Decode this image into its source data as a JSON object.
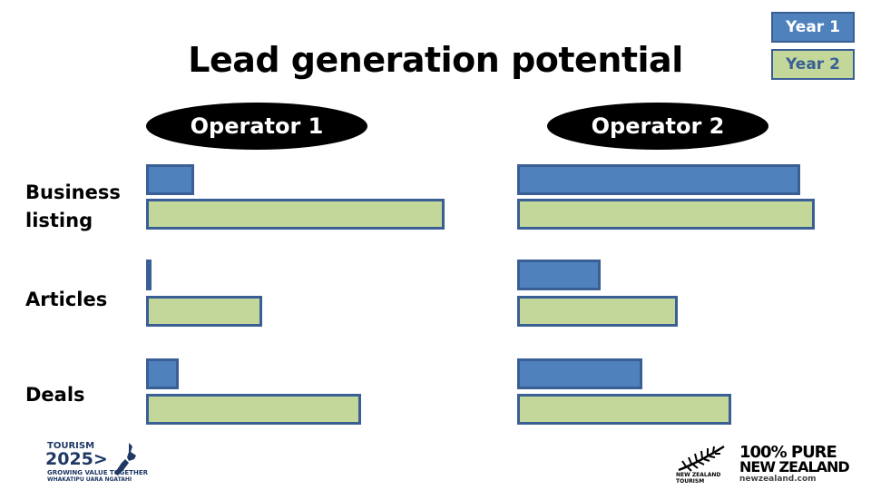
{
  "slide": {
    "title": "Lead generation potential"
  },
  "legend": {
    "year1": "Year 1",
    "year2": "Year 2"
  },
  "colors": {
    "year1": "#4f81bd",
    "year2": "#c4d79b",
    "bar_border": "#3a5f95",
    "pill": "#000000"
  },
  "logos": {
    "left": {
      "line1": "TOURISM",
      "line2": "2025>",
      "line3": "GROWING VALUE TOGETHER",
      "line4": "WHAKATIPU UARA NGATAHI"
    },
    "right": {
      "brand_line1": "100% PURE",
      "brand_line2": "NEW ZEALAND",
      "url": "newzealand.com",
      "caption_line1": "NEW ZEALAND",
      "caption_line2": "TOURISM",
      "icon": "silver-fern-icon"
    }
  },
  "chart_data": [
    {
      "type": "bar",
      "orientation": "horizontal",
      "title": "Operator 1",
      "categories": [
        "Business\nlisting",
        "Articles",
        "Deals"
      ],
      "series": [
        {
          "name": "Year 1",
          "values": [
            16,
            1,
            11
          ]
        },
        {
          "name": "Year 2",
          "values": [
            100,
            39,
            72
          ]
        }
      ],
      "xlim": [
        0,
        100
      ],
      "grid": false,
      "legend": "top-right"
    },
    {
      "type": "bar",
      "orientation": "horizontal",
      "title": "Operator 2",
      "categories": [
        "Business\nlisting",
        "Articles",
        "Deals"
      ],
      "series": [
        {
          "name": "Year 1",
          "values": [
            95,
            28,
            42
          ]
        },
        {
          "name": "Year 2",
          "values": [
            100,
            54,
            72
          ]
        }
      ],
      "xlim": [
        0,
        100
      ],
      "grid": false,
      "legend": "top-right"
    }
  ]
}
